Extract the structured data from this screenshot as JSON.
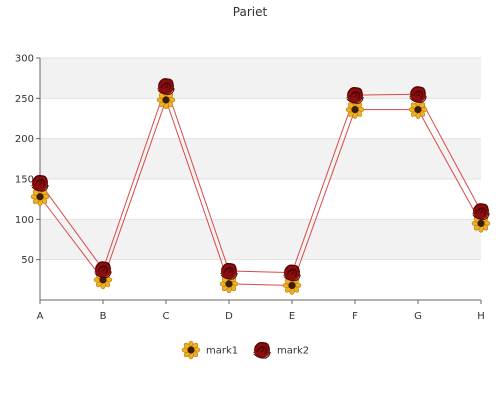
{
  "chart_data": {
    "type": "line",
    "title": "Pariet",
    "xlabel": "",
    "ylabel": "",
    "categories": [
      "A",
      "B",
      "C",
      "D",
      "E",
      "F",
      "G",
      "H"
    ],
    "yticks": [
      50,
      100,
      150,
      200,
      250,
      300
    ],
    "ylim": [
      0,
      300
    ],
    "grid": "horizontal bands",
    "legend_position": "bottom-center",
    "series": [
      {
        "name": "mark1",
        "values": [
          128,
          25,
          248,
          20,
          18,
          236,
          236,
          95
        ],
        "color": "#d94a4a",
        "marker": "sunflower-icon"
      },
      {
        "name": "mark2",
        "values": [
          145,
          38,
          265,
          36,
          34,
          254,
          255,
          110
        ],
        "color": "#d94a4a",
        "marker": "rose-icon"
      }
    ],
    "colors": {
      "band": "#f2f2f2",
      "axis": "#666666",
      "sunflower_petal": "#f0b020",
      "sunflower_center": "#3a1e08",
      "rose": "#8b0d0d"
    }
  }
}
